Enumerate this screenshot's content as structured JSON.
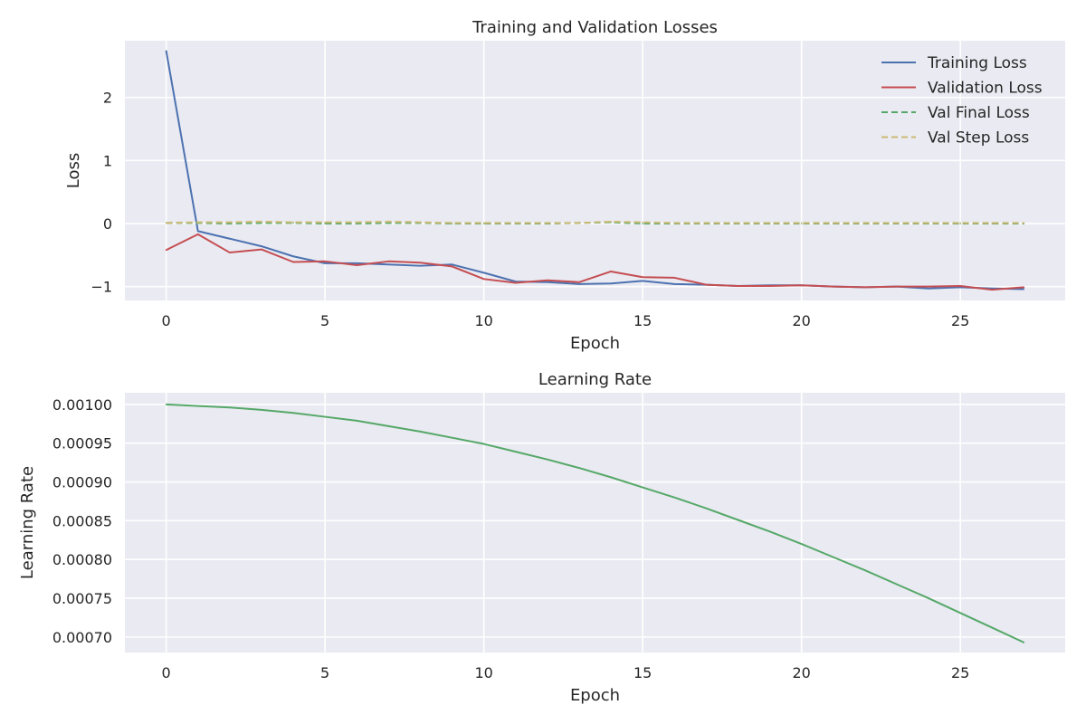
{
  "figure": {
    "background": "#ffffff",
    "panel_background": "#eaeaf2",
    "grid_color": "#ffffff",
    "text_color": "#262626"
  },
  "chart_data": [
    {
      "type": "line",
      "title": "Training and Validation Losses",
      "xlabel": "Epoch",
      "ylabel": "Loss",
      "xlim": [
        -1.3,
        28.3
      ],
      "ylim": [
        -1.22,
        2.9
      ],
      "xticks": [
        0,
        5,
        10,
        15,
        20,
        25
      ],
      "yticks": [
        -1,
        0,
        1,
        2
      ],
      "ytick_labels": [
        "−1",
        "0",
        "1",
        "2"
      ],
      "grid": true,
      "legend": "upper right",
      "x": [
        0,
        1,
        2,
        3,
        4,
        5,
        6,
        7,
        8,
        9,
        10,
        11,
        12,
        13,
        14,
        15,
        16,
        17,
        18,
        19,
        20,
        21,
        22,
        23,
        24,
        25,
        26,
        27
      ],
      "series": [
        {
          "name": "Training Loss",
          "color": "#4c72b0",
          "dash": "solid",
          "values": [
            2.74,
            -0.12,
            -0.24,
            -0.36,
            -0.52,
            -0.63,
            -0.63,
            -0.65,
            -0.67,
            -0.65,
            -0.78,
            -0.92,
            -0.93,
            -0.96,
            -0.95,
            -0.91,
            -0.96,
            -0.97,
            -0.99,
            -0.98,
            -0.98,
            -1.0,
            -1.01,
            -1.0,
            -1.03,
            -1.01,
            -1.03,
            -1.04
          ]
        },
        {
          "name": "Validation Loss",
          "color": "#c44e52",
          "dash": "solid",
          "values": [
            -0.42,
            -0.17,
            -0.46,
            -0.41,
            -0.61,
            -0.6,
            -0.66,
            -0.6,
            -0.62,
            -0.68,
            -0.88,
            -0.94,
            -0.9,
            -0.93,
            -0.76,
            -0.85,
            -0.86,
            -0.97,
            -0.99,
            -0.99,
            -0.98,
            -1.0,
            -1.01,
            -1.0,
            -1.0,
            -0.99,
            -1.05,
            -1.01
          ]
        },
        {
          "name": "Val Final Loss",
          "color": "#55a868",
          "dash": "dashed",
          "values": [
            0.01,
            0.01,
            0.0,
            0.01,
            0.01,
            0.0,
            0.0,
            0.01,
            0.01,
            0.0,
            0.0,
            0.0,
            0.0,
            0.01,
            0.02,
            0.0,
            0.0,
            0.0,
            0.0,
            0.0,
            0.0,
            0.0,
            0.0,
            0.0,
            0.0,
            0.0,
            0.0,
            0.0
          ]
        },
        {
          "name": "Val Step Loss",
          "color": "#ccb974",
          "dash": "dashed",
          "values": [
            0.01,
            0.02,
            0.02,
            0.03,
            0.02,
            0.02,
            0.02,
            0.03,
            0.02,
            0.01,
            0.01,
            0.01,
            0.01,
            0.01,
            0.03,
            0.02,
            0.01,
            0.01,
            0.01,
            0.01,
            0.01,
            0.01,
            0.01,
            0.01,
            0.01,
            0.01,
            0.01,
            0.01
          ]
        }
      ]
    },
    {
      "type": "line",
      "title": "Learning Rate",
      "xlabel": "Epoch",
      "ylabel": "Learning Rate",
      "xlim": [
        -1.3,
        28.3
      ],
      "ylim": [
        0.00068,
        0.001015
      ],
      "xticks": [
        0,
        5,
        10,
        15,
        20,
        25
      ],
      "yticks": [
        0.0007,
        0.00075,
        0.0008,
        0.00085,
        0.0009,
        0.00095,
        0.001
      ],
      "ytick_labels": [
        "0.00070",
        "0.00075",
        "0.00080",
        "0.00085",
        "0.00090",
        "0.00095",
        "0.00100"
      ],
      "grid": true,
      "legend": "none",
      "x": [
        0,
        1,
        2,
        3,
        4,
        5,
        6,
        7,
        8,
        9,
        10,
        11,
        12,
        13,
        14,
        15,
        16,
        17,
        18,
        19,
        20,
        21,
        22,
        23,
        24,
        25,
        26,
        27
      ],
      "series": [
        {
          "name": "",
          "color": "#55a868",
          "dash": "solid",
          "values": [
            0.001,
            0.000998,
            0.000996,
            0.000993,
            0.000989,
            0.000984,
            0.000979,
            0.000972,
            0.000965,
            0.000957,
            0.000949,
            0.000939,
            0.000929,
            0.000918,
            0.000906,
            0.000893,
            0.00088,
            0.000866,
            0.000851,
            0.000836,
            0.00082,
            0.000803,
            0.000786,
            0.000768,
            0.00075,
            0.000731,
            0.000712,
            0.000693
          ]
        }
      ]
    }
  ]
}
